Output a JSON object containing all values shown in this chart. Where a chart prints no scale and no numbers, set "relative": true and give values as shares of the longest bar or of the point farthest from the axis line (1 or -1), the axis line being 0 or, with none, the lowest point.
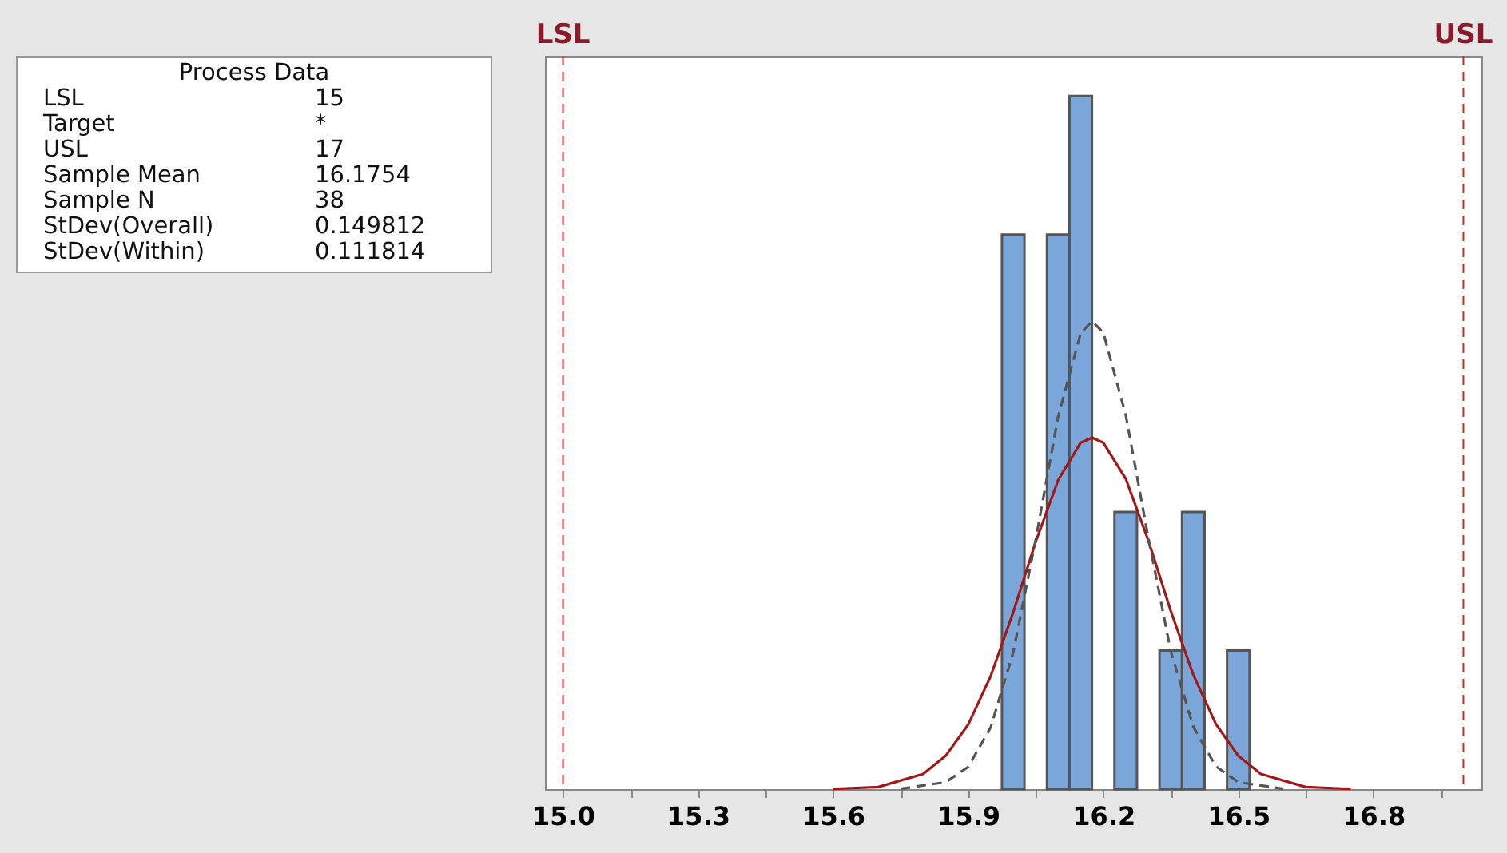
{
  "chart_data": {
    "type": "histogram",
    "relative": true,
    "bins": [
      15.975,
      16.025,
      16.075,
      16.125,
      16.175,
      16.225,
      16.275,
      16.325,
      16.375,
      16.425,
      16.475,
      16.525
    ],
    "series": [
      {
        "type": "histogram",
        "color": "#7ba6d9",
        "values": [
          0.8,
          0,
          0.8,
          1,
          0,
          0.4,
          0,
          0.2,
          0.4,
          0,
          0.2
        ]
      },
      {
        "type": "line",
        "color": "#a01818",
        "line_style": "solid",
        "x": [
          15.6,
          15.7,
          15.8,
          15.85,
          15.9,
          15.95,
          16.0,
          16.05,
          16.1,
          16.15,
          16.1754,
          16.2,
          16.25,
          16.3,
          16.35,
          16.4,
          16.45,
          16.5,
          16.55,
          16.65,
          16.75
        ],
        "values": [
          0.0003,
          0.003,
          0.022,
          0.048,
          0.093,
          0.163,
          0.255,
          0.357,
          0.446,
          0.5,
          0.507,
          0.5,
          0.448,
          0.359,
          0.257,
          0.165,
          0.094,
          0.048,
          0.022,
          0.003,
          0.0003
        ]
      },
      {
        "type": "line",
        "color": "#555555",
        "line_style": "dashed",
        "x": [
          15.75,
          15.85,
          15.9,
          15.95,
          16.0,
          16.05,
          16.1,
          16.15,
          16.1754,
          16.2,
          16.25,
          16.3,
          16.35,
          16.4,
          16.45,
          16.5,
          16.6
        ],
        "values": [
          0.0005,
          0.01,
          0.032,
          0.089,
          0.197,
          0.36,
          0.538,
          0.658,
          0.675,
          0.659,
          0.54,
          0.363,
          0.199,
          0.09,
          0.033,
          0.01,
          0.0005
        ]
      }
    ],
    "xlim": [
      14.96,
      17.04
    ],
    "xticks": [
      {
        "value": 15,
        "label": "15.0"
      },
      {
        "value": 15.15,
        "label": null
      },
      15.3,
      {
        "value": 15.45,
        "label": null
      },
      15.6,
      {
        "value": 15.75,
        "label": null
      },
      15.9,
      {
        "value": 16.05,
        "label": null
      },
      16.2,
      {
        "value": 16.35,
        "label": null
      },
      16.5,
      {
        "value": 16.65,
        "label": null
      },
      16.8,
      {
        "value": 16.95,
        "label": null
      }
    ],
    "ref_lines": [
      {
        "axis": "x",
        "value": 15,
        "label": "LSL",
        "color": "#e02020",
        "line_style": "dashed"
      },
      {
        "axis": "x",
        "value": 17,
        "label": "USL",
        "color": "#e02020",
        "line_style": "dashed"
      }
    ],
    "annotations": [
      "Process Data",
      "LSL",
      "15",
      "Target",
      "*",
      "USL",
      "17",
      "Sample Mean",
      "16.1754",
      "Sample N",
      "38",
      "StDev(Overall)",
      "0.149812",
      "StDev(Within)",
      "0.111814"
    ],
    "grid": false
  }
}
